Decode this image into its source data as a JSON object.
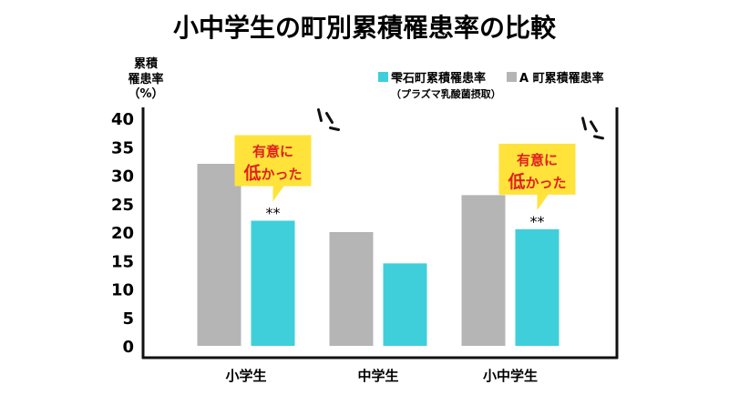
{
  "chart_data": {
    "type": "bar",
    "title": "小中学生の町別累積罹患率の比較",
    "ylabel": [
      "累積",
      "罹患率",
      "（%）"
    ],
    "ylim": [
      0,
      40
    ],
    "yticks": [
      0,
      5,
      10,
      15,
      20,
      25,
      30,
      35,
      40
    ],
    "categories": [
      "小学生",
      "中学生",
      "小中学生"
    ],
    "series": [
      {
        "name": "A 町累積罹患率",
        "values": [
          32,
          20,
          26.5
        ],
        "color": "#b5b5b5"
      },
      {
        "name": "雫石町累積罹患率",
        "note": "（プラズマ乳酸菌摂取）",
        "values": [
          22,
          14.5,
          20.5
        ],
        "color": "#3ecfdb"
      }
    ],
    "significance": [
      {
        "category_index": 0,
        "label": "**"
      },
      {
        "category_index": 2,
        "label": "**"
      }
    ],
    "callouts": [
      {
        "category_index": 0,
        "line1": "有意に",
        "line2_big": "低",
        "line2_rest": "かった",
        "bg": "#ffe33a",
        "text_color": "#e02020"
      },
      {
        "category_index": 2,
        "line1": "有意に",
        "line2_big": "低",
        "line2_rest": "かった",
        "bg": "#ffe33a",
        "text_color": "#e02020"
      }
    ]
  }
}
